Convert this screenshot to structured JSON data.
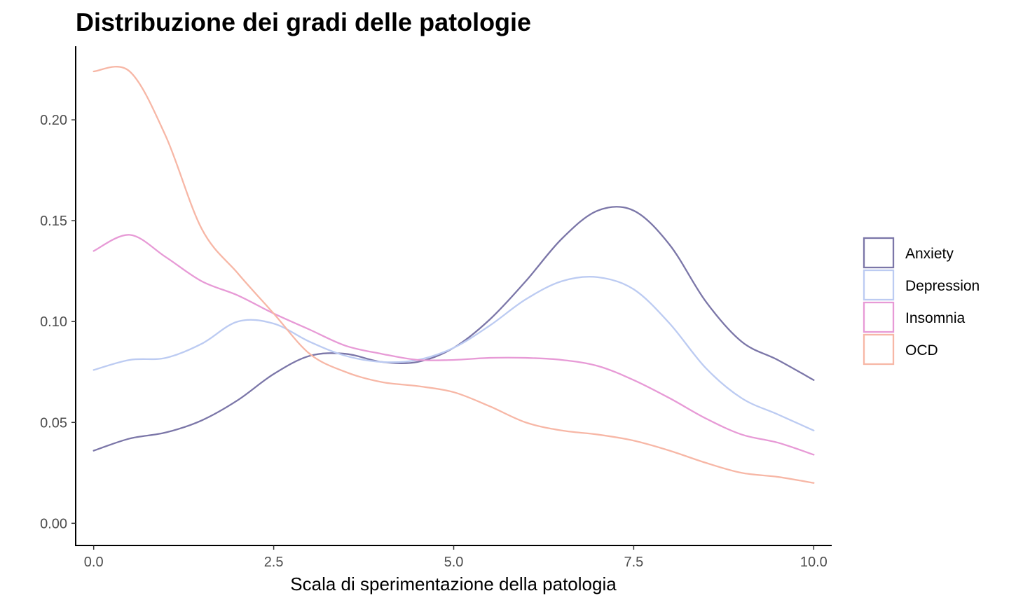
{
  "chart_data": {
    "type": "line",
    "title": "Distribuzione dei gradi delle patologie",
    "xlabel": "Scala di sperimentazione della patologia",
    "ylabel": "",
    "xlim": [
      -0.25,
      10.25
    ],
    "ylim": [
      -0.011,
      0.2365
    ],
    "x_ticks": [
      0,
      2.5,
      5,
      7.5,
      10
    ],
    "x_tick_labels": [
      "0.0",
      "2.5",
      "5.0",
      "7.5",
      "10.0"
    ],
    "y_ticks": [
      0,
      0.05,
      0.1,
      0.15,
      0.2
    ],
    "y_tick_labels": [
      "0.00",
      "0.05",
      "0.10",
      "0.15",
      "0.20"
    ],
    "grid": false,
    "legend_position": "right",
    "x": [
      0,
      0.5,
      1,
      1.5,
      2,
      2.5,
      3,
      3.5,
      4,
      4.5,
      5,
      5.5,
      6,
      6.5,
      7,
      7.5,
      8,
      8.5,
      9,
      9.5,
      10
    ],
    "series": [
      {
        "name": "Anxiety",
        "color": "#7b76a8",
        "values": [
          0.036,
          0.042,
          0.045,
          0.051,
          0.061,
          0.074,
          0.083,
          0.084,
          0.08,
          0.08,
          0.087,
          0.101,
          0.12,
          0.141,
          0.155,
          0.155,
          0.138,
          0.11,
          0.09,
          0.081,
          0.071
        ]
      },
      {
        "name": "Depression",
        "color": "#bccbf2",
        "values": [
          0.076,
          0.081,
          0.082,
          0.089,
          0.1,
          0.099,
          0.09,
          0.083,
          0.08,
          0.081,
          0.087,
          0.098,
          0.111,
          0.12,
          0.122,
          0.116,
          0.099,
          0.077,
          0.062,
          0.054,
          0.046
        ]
      },
      {
        "name": "Insomnia",
        "color": "#e79ad6",
        "values": [
          0.135,
          0.143,
          0.132,
          0.12,
          0.113,
          0.104,
          0.096,
          0.088,
          0.084,
          0.081,
          0.081,
          0.082,
          0.082,
          0.081,
          0.078,
          0.071,
          0.062,
          0.052,
          0.044,
          0.04,
          0.034
        ]
      },
      {
        "name": "OCD",
        "color": "#f7b7a6",
        "values": [
          0.224,
          0.224,
          0.192,
          0.146,
          0.124,
          0.104,
          0.084,
          0.075,
          0.07,
          0.068,
          0.065,
          0.058,
          0.05,
          0.046,
          0.044,
          0.041,
          0.036,
          0.03,
          0.025,
          0.023,
          0.02
        ]
      }
    ]
  }
}
